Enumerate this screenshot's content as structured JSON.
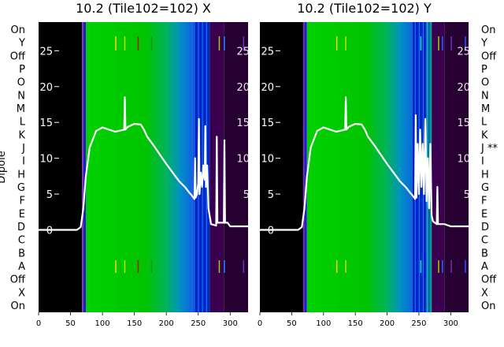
{
  "chart_data": [
    {
      "type": "heatmap",
      "title": "10.2 (Tile102=102) X",
      "ylabel": "Dipole",
      "xlim": [
        0,
        328
      ],
      "xticks": [
        0,
        50,
        100,
        150,
        200,
        250,
        300
      ],
      "row_labels": [
        "On",
        "Y",
        "Off",
        "P",
        "O",
        "N",
        "M",
        "L",
        "K",
        "J",
        "I",
        "H",
        "G",
        "F",
        "E",
        "D",
        "C",
        "B",
        "A",
        "Off",
        "X",
        "On"
      ],
      "overlay_ylim": [
        -11.5,
        29
      ],
      "overlay_yticks": [
        0,
        5,
        10,
        15,
        20,
        25
      ],
      "overlay_line": {
        "x": [
          0,
          60,
          66,
          70,
          74,
          80,
          90,
          100,
          110,
          120,
          130,
          134,
          135,
          136,
          140,
          150,
          160,
          165,
          170,
          180,
          190,
          200,
          210,
          220,
          230,
          236,
          240,
          244,
          245,
          246,
          248,
          250,
          251,
          252,
          254,
          256,
          258,
          260,
          261,
          262,
          264,
          266,
          270,
          278,
          279,
          280,
          284,
          290,
          291,
          292,
          296,
          300,
          328
        ],
        "y": [
          0,
          0,
          0.4,
          3,
          7.5,
          11.5,
          13.8,
          14.3,
          14,
          13.7,
          13.9,
          14,
          18.5,
          14,
          14.4,
          14.8,
          14.7,
          14,
          13,
          11.8,
          10.5,
          9.2,
          8,
          6.8,
          5.9,
          5.2,
          4.8,
          4.3,
          10,
          4.5,
          5,
          6.5,
          15.5,
          5,
          8,
          6,
          9,
          7,
          14.5,
          6,
          9,
          3,
          0.8,
          0.6,
          13,
          1,
          1,
          1,
          12.5,
          1,
          1,
          0.5,
          0.5
        ]
      },
      "band_colors": [
        {
          "from": 0,
          "to": 68,
          "color": "#000000"
        },
        {
          "from": 68,
          "to": 70,
          "color": "#7a2bb0"
        },
        {
          "from": 70,
          "to": 74,
          "color": "#1c1cc8"
        },
        {
          "from": 74,
          "to": 80,
          "color": "#00d000"
        },
        {
          "from": 80,
          "to": 120,
          "color": "#00d000"
        },
        {
          "from": 120,
          "to": 175,
          "color": "#00c400"
        },
        {
          "from": 175,
          "to": 200,
          "color": "#00c030"
        },
        {
          "from": 200,
          "to": 220,
          "color": "#00b070"
        },
        {
          "from": 220,
          "to": 235,
          "color": "#0090c0"
        },
        {
          "from": 235,
          "to": 242,
          "color": "#1070e0"
        },
        {
          "from": 242,
          "to": 268,
          "color": "#0020c8"
        },
        {
          "from": 268,
          "to": 290,
          "color": "#3a0050"
        },
        {
          "from": 290,
          "to": 328,
          "color": "#260030"
        }
      ]
    },
    {
      "type": "heatmap",
      "title": "10.2 (Tile102=102) Y",
      "xlim": [
        0,
        328
      ],
      "xticks": [
        0,
        50,
        100,
        150,
        200,
        250,
        300
      ],
      "row_labels": [
        "On",
        "Y",
        "Off",
        "P",
        "O",
        "N",
        "M",
        "L",
        "K",
        "J **",
        "I",
        "H",
        "G",
        "F",
        "E",
        "D",
        "C",
        "B",
        "A",
        "Off",
        "X",
        "On"
      ],
      "overlay_ylim": [
        -11.5,
        29
      ],
      "overlay_yticks": [
        0,
        5,
        10,
        15,
        20,
        25
      ],
      "overlay_line": {
        "x": [
          0,
          60,
          66,
          70,
          74,
          80,
          90,
          100,
          110,
          120,
          130,
          134,
          135,
          136,
          140,
          150,
          160,
          165,
          170,
          180,
          190,
          200,
          210,
          220,
          230,
          236,
          240,
          244,
          245,
          246,
          248,
          250,
          252,
          254,
          256,
          258,
          260,
          262,
          264,
          266,
          268,
          270,
          272,
          278,
          279,
          280,
          290,
          300,
          328
        ],
        "y": [
          0,
          0,
          0.4,
          3,
          7.5,
          11.5,
          13.8,
          14.3,
          14,
          13.7,
          13.9,
          14,
          18.5,
          14,
          14.4,
          14.8,
          14.7,
          14,
          13,
          11.8,
          10.5,
          9.2,
          8,
          6.8,
          5.9,
          5.2,
          4.8,
          4.3,
          16,
          4.5,
          12,
          5,
          14,
          6,
          12,
          5,
          15.5,
          4,
          10,
          3,
          12,
          2,
          1.2,
          0.8,
          6,
          0.8,
          0.8,
          0.5,
          0.5
        ]
      },
      "band_colors": [
        {
          "from": 0,
          "to": 68,
          "color": "#000000"
        },
        {
          "from": 68,
          "to": 70,
          "color": "#7a2bb0"
        },
        {
          "from": 70,
          "to": 74,
          "color": "#1c1cc8"
        },
        {
          "from": 74,
          "to": 80,
          "color": "#00d000"
        },
        {
          "from": 80,
          "to": 120,
          "color": "#00d000"
        },
        {
          "from": 120,
          "to": 175,
          "color": "#00c400"
        },
        {
          "from": 175,
          "to": 200,
          "color": "#00c030"
        },
        {
          "from": 200,
          "to": 220,
          "color": "#00b070"
        },
        {
          "from": 220,
          "to": 240,
          "color": "#0090c0"
        },
        {
          "from": 240,
          "to": 262,
          "color": "#0020c8"
        },
        {
          "from": 262,
          "to": 270,
          "color": "#00b080"
        },
        {
          "from": 270,
          "to": 290,
          "color": "#3a0050"
        },
        {
          "from": 290,
          "to": 328,
          "color": "#260030"
        }
      ]
    }
  ]
}
